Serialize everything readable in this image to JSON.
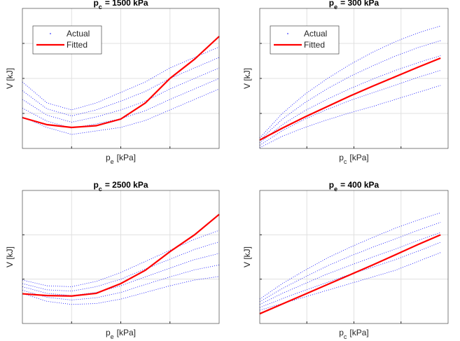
{
  "chart_data": [
    {
      "type": "line",
      "title": {
        "symbol": "p",
        "subscript": "c",
        "text": "= 1500 kPa"
      },
      "xlabel": {
        "symbol": "p",
        "subscript": "e",
        "text": "[kPa]"
      },
      "ylabel": "V [kJ]",
      "xlim": [
        0,
        4
      ],
      "ylim": [
        0,
        4
      ],
      "xgrid": [
        1,
        2,
        3
      ],
      "ygrid": [
        1,
        2,
        3
      ],
      "legend": "northwest",
      "x": [
        0,
        0.5,
        1,
        1.5,
        2,
        2.5,
        3,
        3.5,
        4
      ],
      "series": [
        {
          "name": "Actual",
          "color": "#0000ff",
          "style": "dots",
          "curves": [
            [
              0.9,
              0.6,
              0.4,
              0.5,
              0.6,
              0.8,
              1.1,
              1.4,
              1.7
            ],
            [
              1.15,
              0.78,
              0.58,
              0.7,
              0.85,
              1.08,
              1.4,
              1.7,
              2.0
            ],
            [
              1.4,
              0.95,
              0.75,
              0.9,
              1.1,
              1.35,
              1.7,
              2.0,
              2.3
            ],
            [
              1.65,
              1.13,
              0.93,
              1.1,
              1.35,
              1.63,
              2.0,
              2.3,
              2.6
            ],
            [
              1.9,
              1.3,
              1.1,
              1.3,
              1.6,
              1.9,
              2.3,
              2.6,
              2.9
            ]
          ]
        },
        {
          "name": "Fitted",
          "color": "#ff0000",
          "style": "line",
          "values": [
            0.88,
            0.68,
            0.6,
            0.65,
            0.84,
            1.3,
            2.0,
            2.55,
            3.2
          ]
        }
      ]
    },
    {
      "type": "line",
      "title": {
        "symbol": "p",
        "subscript": "e",
        "text": "= 300 kPa"
      },
      "xlabel": {
        "symbol": "p",
        "subscript": "c",
        "text": "[kPa]"
      },
      "ylabel": "V [kJ]",
      "xlim": [
        0,
        4
      ],
      "ylim": [
        0,
        4
      ],
      "xgrid": [
        1,
        2,
        3
      ],
      "ygrid": [
        1,
        2,
        3
      ],
      "legend": "northwest",
      "x": [
        0,
        0.48,
        0.96,
        1.44,
        1.92,
        2.4,
        2.88,
        3.36,
        3.84
      ],
      "series": [
        {
          "name": "Actual",
          "color": "#0000ff",
          "style": "dots",
          "curves": [
            [
              0.02,
              0.35,
              0.6,
              0.82,
              1.02,
              1.2,
              1.4,
              1.6,
              1.8
            ],
            [
              0.09,
              0.51,
              0.84,
              1.12,
              1.37,
              1.59,
              1.81,
              2.03,
              2.23
            ],
            [
              0.16,
              0.68,
              1.08,
              1.41,
              1.71,
              1.98,
              2.23,
              2.45,
              2.65
            ],
            [
              0.23,
              0.84,
              1.31,
              1.71,
              2.06,
              2.36,
              2.64,
              2.88,
              3.08
            ],
            [
              0.3,
              1.0,
              1.55,
              2.0,
              2.4,
              2.75,
              3.05,
              3.3,
              3.5
            ]
          ]
        },
        {
          "name": "Fitted",
          "color": "#ff0000",
          "style": "line",
          "values": [
            0.24,
            0.58,
            0.9,
            1.2,
            1.5,
            1.78,
            2.05,
            2.32,
            2.58
          ]
        }
      ]
    },
    {
      "type": "line",
      "title": {
        "symbol": "p",
        "subscript": "c",
        "text": "= 2500 kPa"
      },
      "xlabel": {
        "symbol": "p",
        "subscript": "e",
        "text": "[kPa]"
      },
      "ylabel": "V [kJ]",
      "xlim": [
        0,
        4
      ],
      "ylim": [
        0,
        3
      ],
      "xgrid": [
        1,
        2,
        3
      ],
      "ygrid": [
        1,
        2
      ],
      "x": [
        0,
        0.5,
        1,
        1.5,
        2,
        2.5,
        3,
        3.5,
        4
      ],
      "series": [
        {
          "color": "#0000ff",
          "style": "dots",
          "curves": [
            [
              0.68,
              0.5,
              0.43,
              0.45,
              0.55,
              0.7,
              0.85,
              0.98,
              1.06
            ],
            [
              0.75,
              0.59,
              0.53,
              0.58,
              0.7,
              0.88,
              1.05,
              1.21,
              1.32
            ],
            [
              0.83,
              0.68,
              0.63,
              0.7,
              0.85,
              1.05,
              1.25,
              1.44,
              1.58
            ],
            [
              0.9,
              0.76,
              0.73,
              0.83,
              1.0,
              1.23,
              1.45,
              1.67,
              1.84
            ],
            [
              0.98,
              0.85,
              0.83,
              0.95,
              1.15,
              1.4,
              1.65,
              1.9,
              2.1
            ]
          ]
        },
        {
          "color": "#ff0000",
          "style": "line",
          "values": [
            0.67,
            0.63,
            0.62,
            0.68,
            0.9,
            1.2,
            1.62,
            2.0,
            2.46
          ]
        }
      ]
    },
    {
      "type": "line",
      "title": {
        "symbol": "p",
        "subscript": "e",
        "text": "= 400 kPa"
      },
      "xlabel": {
        "symbol": "p",
        "subscript": "c",
        "text": "[kPa]"
      },
      "ylabel": "V [kJ]",
      "xlim": [
        0,
        4
      ],
      "ylim": [
        0,
        3
      ],
      "xgrid": [
        1,
        2,
        3
      ],
      "ygrid": [
        1,
        2
      ],
      "x": [
        0,
        0.48,
        0.96,
        1.44,
        1.92,
        2.4,
        2.88,
        3.36,
        3.84
      ],
      "series": [
        {
          "color": "#0000ff",
          "style": "dots",
          "curves": [
            [
              0.3,
              0.45,
              0.6,
              0.75,
              0.9,
              1.05,
              1.2,
              1.4,
              1.6
            ],
            [
              0.36,
              0.56,
              0.75,
              0.93,
              1.11,
              1.27,
              1.44,
              1.63,
              1.83
            ],
            [
              0.43,
              0.68,
              0.9,
              1.12,
              1.31,
              1.5,
              1.68,
              1.87,
              2.05
            ],
            [
              0.49,
              0.79,
              1.05,
              1.3,
              1.52,
              1.72,
              1.91,
              2.1,
              2.28
            ],
            [
              0.55,
              0.9,
              1.2,
              1.48,
              1.72,
              1.94,
              2.15,
              2.33,
              2.5
            ]
          ]
        },
        {
          "color": "#ff0000",
          "style": "line",
          "values": [
            0.22,
            0.44,
            0.66,
            0.88,
            1.1,
            1.32,
            1.55,
            1.78,
            2.0
          ]
        }
      ]
    }
  ]
}
